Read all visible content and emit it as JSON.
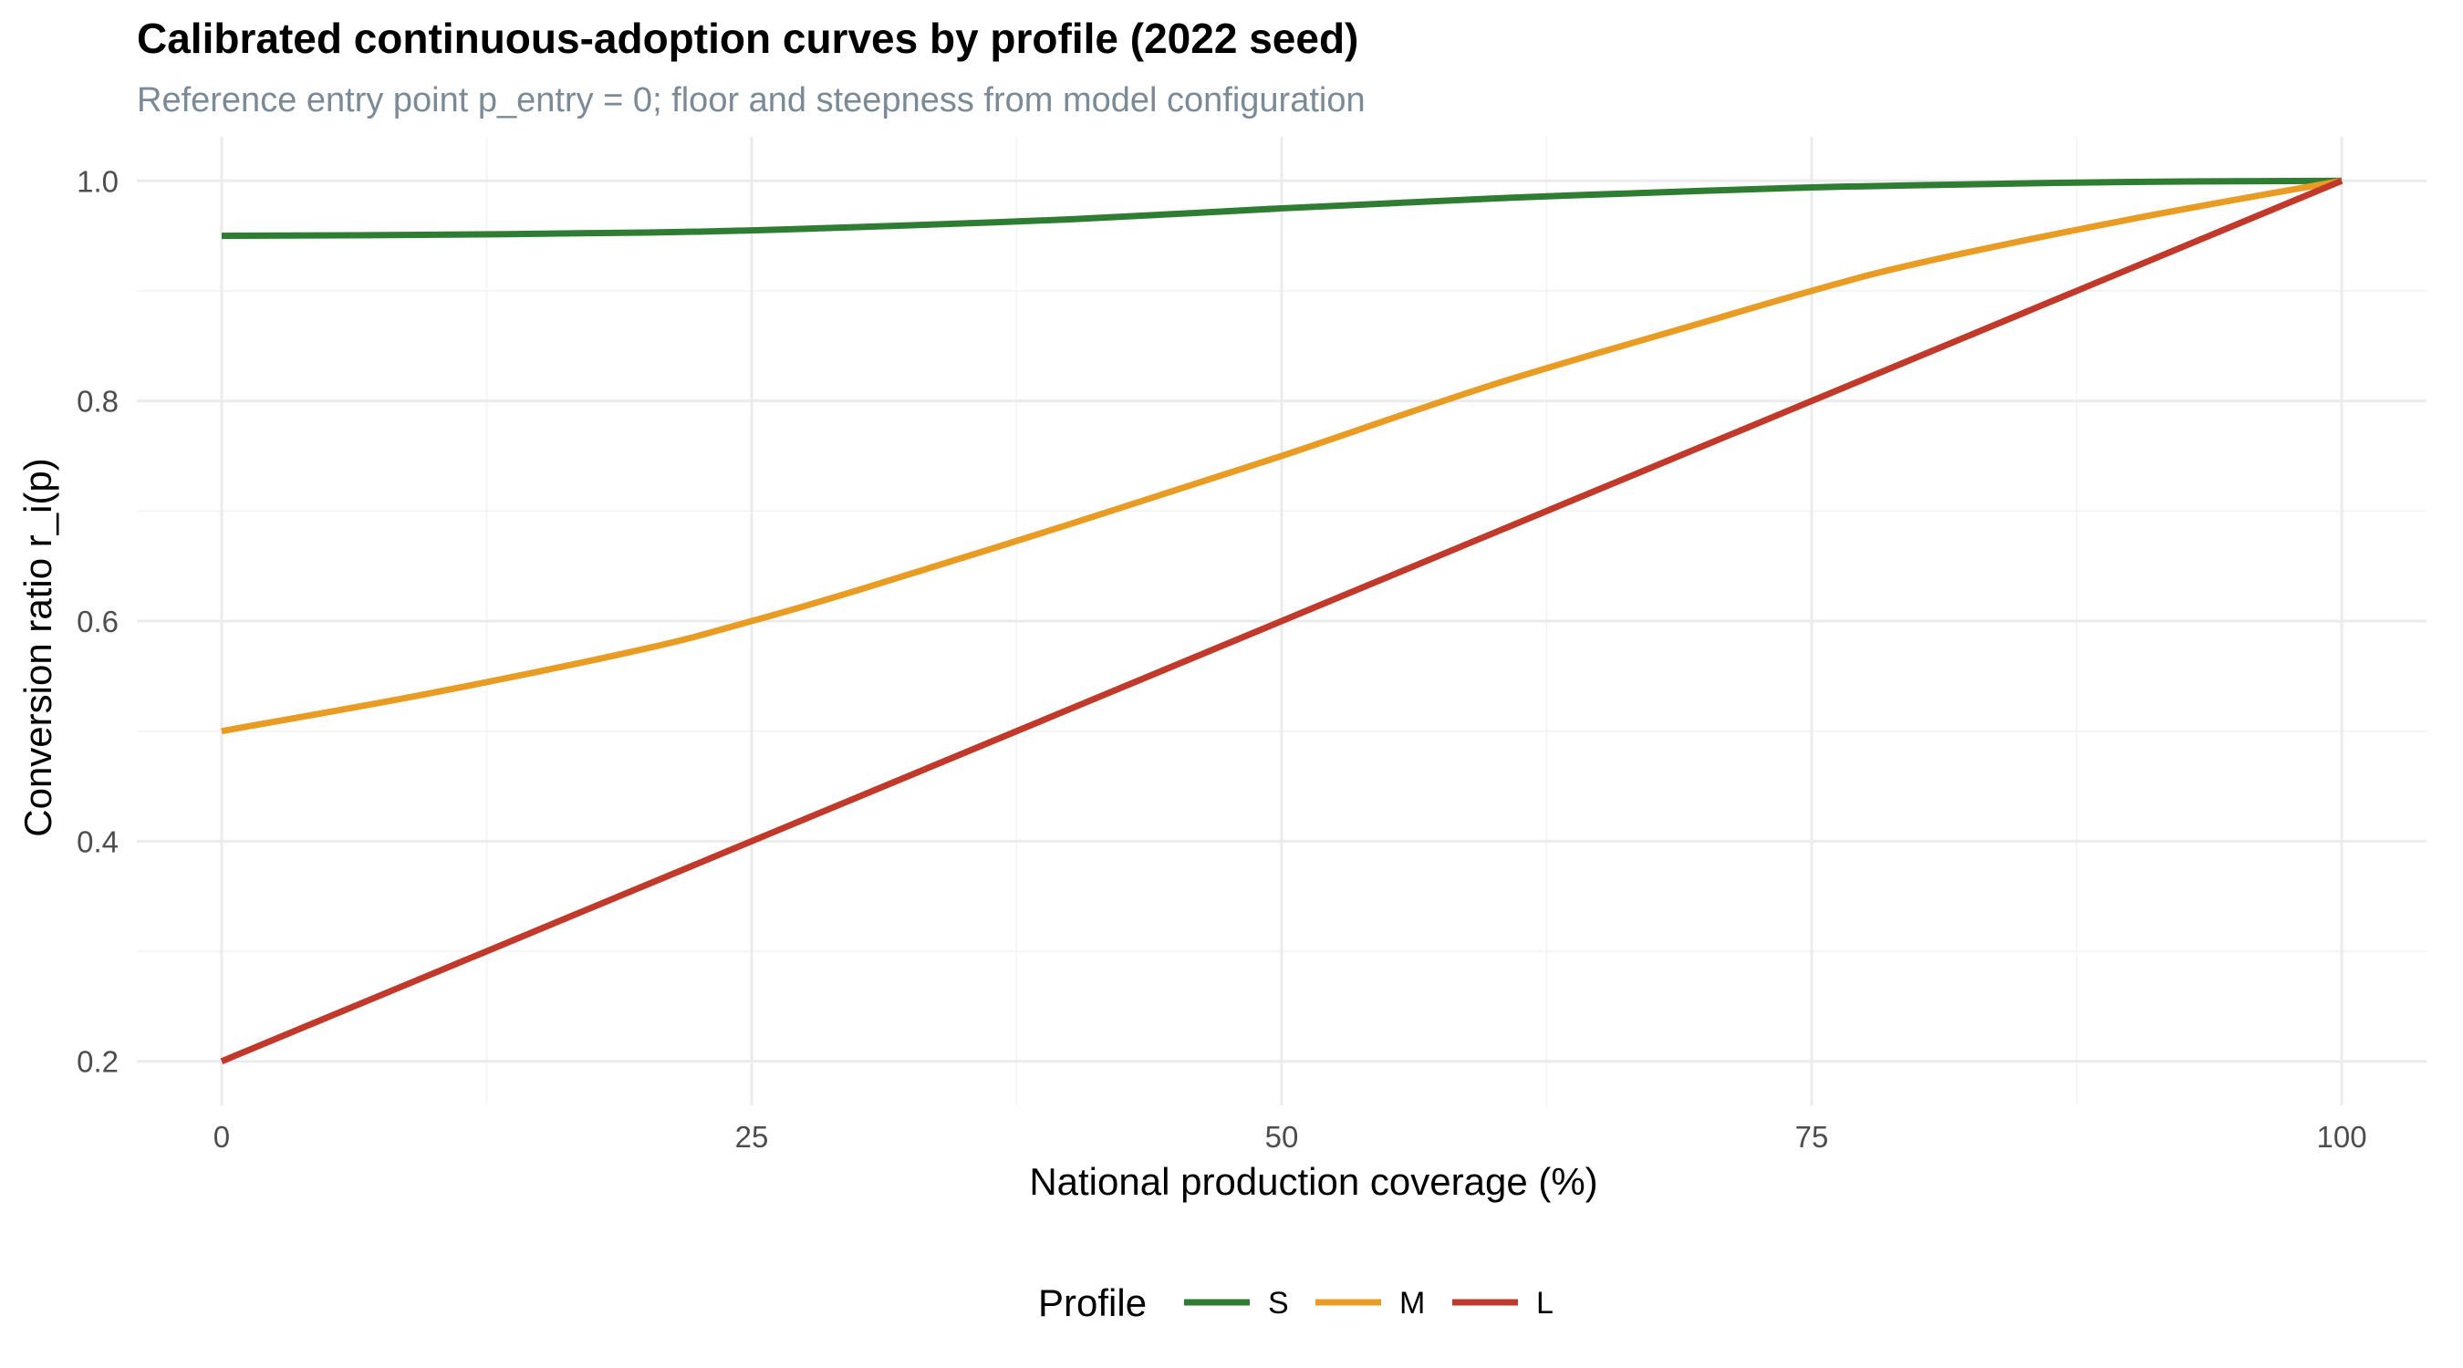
{
  "chart_data": {
    "type": "line",
    "title": "Calibrated continuous-adoption curves by profile (2022 seed)",
    "subtitle": "Reference entry point p_entry = 0; floor and steepness from model configuration",
    "xlabel": "National production coverage (%)",
    "ylabel": "Conversion ratio r_i(p)",
    "xlim": [
      -4,
      104
    ],
    "ylim": [
      0.16,
      1.04
    ],
    "x_ticks": [
      0,
      25,
      50,
      75,
      100
    ],
    "x_tick_labels": [
      "0",
      "25",
      "50",
      "75",
      "100"
    ],
    "y_ticks": [
      0.2,
      0.4,
      0.6,
      0.8,
      1.0
    ],
    "y_tick_labels": [
      "0.2",
      "0.4",
      "0.6",
      "0.8",
      "1.0"
    ],
    "x_minor_ticks": [
      12.5,
      37.5,
      62.5,
      87.5
    ],
    "y_minor_ticks": [
      0.3,
      0.5,
      0.7,
      0.9
    ],
    "grid": true,
    "legend": {
      "title": "Profile",
      "position": "bottom"
    },
    "x": [
      0,
      10,
      20,
      25,
      30,
      40,
      50,
      60,
      70,
      75,
      80,
      90,
      100
    ],
    "series": [
      {
        "name": "S",
        "color": "#2e7d32",
        "values": [
          0.95,
          0.951,
          0.953,
          0.955,
          0.958,
          0.965,
          0.975,
          0.984,
          0.991,
          0.994,
          0.996,
          0.999,
          1.0
        ]
      },
      {
        "name": "M",
        "color": "#e89c24",
        "values": [
          0.5,
          0.535,
          0.575,
          0.6,
          0.628,
          0.688,
          0.75,
          0.815,
          0.872,
          0.9,
          0.925,
          0.965,
          1.0
        ]
      },
      {
        "name": "L",
        "color": "#c0392b",
        "values": [
          0.2,
          0.28,
          0.36,
          0.4,
          0.44,
          0.52,
          0.6,
          0.68,
          0.76,
          0.8,
          0.84,
          0.92,
          1.0
        ]
      }
    ]
  }
}
